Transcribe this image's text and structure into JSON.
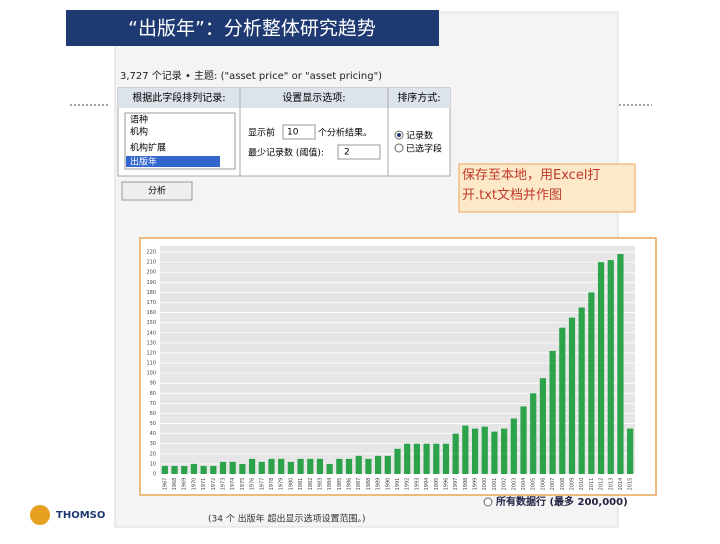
{
  "slide_title": "“出版年”：分析整体研究趋势",
  "panel": {
    "record_count": "3,727 个记录 • 主题: (\"asset price\" or \"asset pricing\")",
    "headers": [
      "根据此字段排列记录:",
      "设置显示选项:",
      "排序方式:"
    ],
    "fields": [
      "语种",
      "机构",
      "机构扩展",
      "出版年"
    ],
    "show_prefix": "显示前",
    "show_count": "10",
    "show_suffix": "个分析结果。",
    "threshold_label": "最少记录数 (阈值):",
    "threshold_value": "2",
    "sort_options": [
      "记录数",
      "已选字段"
    ],
    "button": "分析",
    "all_rows": "所有数据行 (最多 200,000)",
    "footnote": "(34 个 出版年 超出显示选项设置范围。)",
    "logo": "THOMSO"
  },
  "annotation": "保存至本地，用Excel打开.txt文档并作图",
  "chart_data": {
    "type": "bar",
    "color": "#2ca24a",
    "categories": [
      "1967",
      "1968",
      "1969",
      "1970",
      "1971",
      "1972",
      "1973",
      "1974",
      "1975",
      "1976",
      "1977",
      "1978",
      "1979",
      "1980",
      "1981",
      "1982",
      "1983",
      "1984",
      "1985",
      "1986",
      "1987",
      "1988",
      "1989",
      "1990",
      "1991",
      "1992",
      "1993",
      "1994",
      "1995",
      "1996",
      "1997",
      "1998",
      "1999",
      "2000",
      "2001",
      "2002",
      "2003",
      "2004",
      "2005",
      "2006",
      "2007",
      "2008",
      "2009",
      "2010",
      "2011",
      "2012",
      "2013",
      "2014",
      "2015"
    ],
    "values": [
      8,
      8,
      8,
      10,
      8,
      8,
      12,
      12,
      10,
      15,
      12,
      15,
      15,
      12,
      15,
      15,
      15,
      10,
      15,
      15,
      18,
      15,
      18,
      18,
      25,
      30,
      30,
      30,
      30,
      30,
      40,
      48,
      45,
      47,
      42,
      45,
      55,
      67,
      80,
      95,
      122,
      145,
      155,
      165,
      180,
      210,
      212,
      218,
      45
    ],
    "ylim": [
      0,
      226
    ],
    "yticks": [
      0,
      10,
      20,
      30,
      40,
      50,
      60,
      70,
      80,
      90,
      100,
      110,
      120,
      130,
      140,
      150,
      160,
      170,
      180,
      190,
      200,
      210,
      220
    ],
    "grid": true
  }
}
